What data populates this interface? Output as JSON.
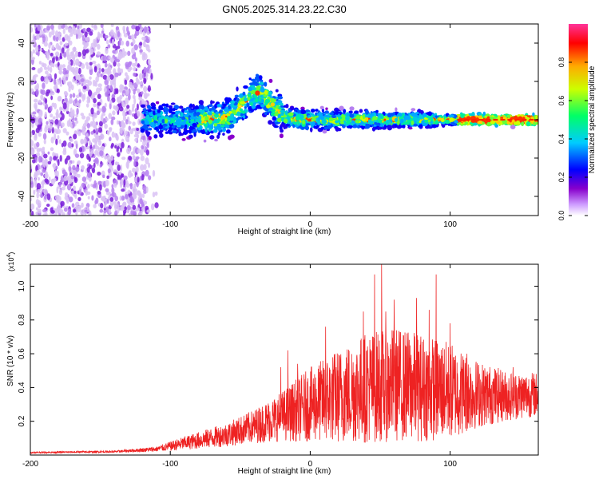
{
  "figure": {
    "title": "GN05.2025.314.23.22.C30"
  },
  "chart_data": [
    {
      "type": "heatmap",
      "name": "spectrogram",
      "xlabel": "Height of straight line (km)",
      "ylabel": "Frequency (Hz)",
      "xlim": [
        -200,
        163
      ],
      "ylim": [
        -50,
        50
      ],
      "xticks": [
        -200,
        -100,
        0,
        100
      ],
      "yticks": [
        -40,
        -20,
        0,
        20,
        40
      ],
      "colorbar": {
        "label": "Normalized spectral amplitude",
        "range": [
          0,
          1
        ],
        "ticks": [
          0.0,
          0.2,
          0.4,
          0.6,
          0.8
        ],
        "tick_labels": [
          "0.0",
          "0.2",
          "0.4",
          "0.6",
          "0.8"
        ],
        "colors": [
          "#ffffff",
          "#cc99ff",
          "#8800cc",
          "#0000ff",
          "#00ccff",
          "#00ff66",
          "#ccff00",
          "#ffaa00",
          "#ff0000",
          "#ff3399"
        ]
      },
      "features": {
        "noise_region_x": [
          -200,
          -115
        ],
        "signal_start_x": -120,
        "signal_center_freq": 0,
        "bump_center_x": -38,
        "bump_peak_freq": 20,
        "strong_tail_from_x": 105
      }
    },
    {
      "type": "line",
      "name": "snr",
      "xlabel": "Height of straight line (km)",
      "ylabel": "SNR (10 * v/v)",
      "multiplier_label": "(x10",
      "multiplier_exp": "4",
      "multiplier_close": ")",
      "xlim": [
        -200,
        163
      ],
      "ylim": [
        0,
        1.13
      ],
      "xticks": [
        -200,
        -100,
        0,
        100
      ],
      "yticks": [
        0.2,
        0.4,
        0.6,
        0.8,
        1.0
      ],
      "ytick_labels": [
        "0.2",
        "0.4",
        "0.6",
        "0.8",
        "1.0"
      ],
      "color": "#ee2222",
      "envelope": {
        "x": [
          -200,
          -140,
          -110,
          -90,
          -60,
          -40,
          -20,
          0,
          20,
          40,
          60,
          80,
          100,
          120,
          140,
          163
        ],
        "mean": [
          0.015,
          0.02,
          0.035,
          0.07,
          0.12,
          0.17,
          0.23,
          0.3,
          0.35,
          0.4,
          0.42,
          0.4,
          0.38,
          0.36,
          0.35,
          0.36
        ],
        "amplitude": [
          0.005,
          0.006,
          0.015,
          0.04,
          0.07,
          0.1,
          0.15,
          0.22,
          0.28,
          0.33,
          0.34,
          0.32,
          0.29,
          0.2,
          0.15,
          0.13
        ]
      },
      "spikes": [
        {
          "x": 51,
          "y": 1.13
        },
        {
          "x": 46,
          "y": 1.07
        },
        {
          "x": 90,
          "y": 1.07
        },
        {
          "x": 76,
          "y": 0.93
        },
        {
          "x": 60,
          "y": 0.92
        },
        {
          "x": 85,
          "y": 0.86
        },
        {
          "x": 38,
          "y": 0.85
        },
        {
          "x": 54,
          "y": 0.85
        },
        {
          "x": 11,
          "y": 0.76
        },
        {
          "x": 100,
          "y": 0.78
        },
        {
          "x": -16,
          "y": 0.62
        },
        {
          "x": 112,
          "y": 0.6
        },
        {
          "x": -21,
          "y": 0.52
        },
        {
          "x": 145,
          "y": 0.52
        },
        {
          "x": -9,
          "y": 0.54
        }
      ]
    }
  ]
}
